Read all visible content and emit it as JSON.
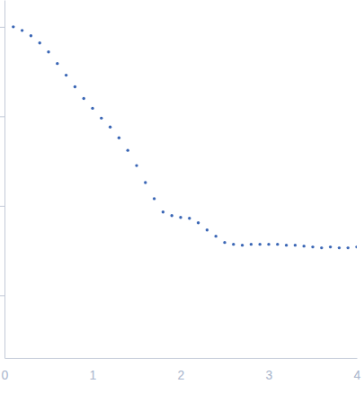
{
  "chart_data": {
    "type": "scatter",
    "x": [
      0.1,
      0.2,
      0.3,
      0.4,
      0.5,
      0.6,
      0.7,
      0.8,
      0.9,
      1.0,
      1.1,
      1.2,
      1.3,
      1.4,
      1.5,
      1.6,
      1.7,
      1.8,
      1.9,
      2.0,
      2.1,
      2.2,
      2.3,
      2.4,
      2.5,
      2.6,
      2.7,
      2.8,
      2.9,
      3.0,
      3.1,
      3.2,
      3.3,
      3.4,
      3.5,
      3.6,
      3.7,
      3.8,
      3.9,
      4.0
    ],
    "values": [
      4.0,
      3.96,
      3.9,
      3.82,
      3.72,
      3.59,
      3.46,
      3.33,
      3.2,
      3.09,
      2.98,
      2.88,
      2.76,
      2.62,
      2.45,
      2.26,
      2.08,
      1.93,
      1.89,
      1.87,
      1.86,
      1.81,
      1.73,
      1.66,
      1.59,
      1.57,
      1.56,
      1.57,
      1.57,
      1.57,
      1.57,
      1.56,
      1.56,
      1.55,
      1.54,
      1.53,
      1.54,
      1.53,
      1.53,
      1.54
    ],
    "color": "#3a66b5",
    "marker": "circle",
    "xlim": [
      0,
      4
    ],
    "xticks": [
      0,
      1,
      2,
      3,
      4
    ],
    "ylim": [
      0.3,
      4.3
    ],
    "yticks": [
      1,
      2,
      3,
      4
    ],
    "tick_labels": "x",
    "grid": false
  }
}
